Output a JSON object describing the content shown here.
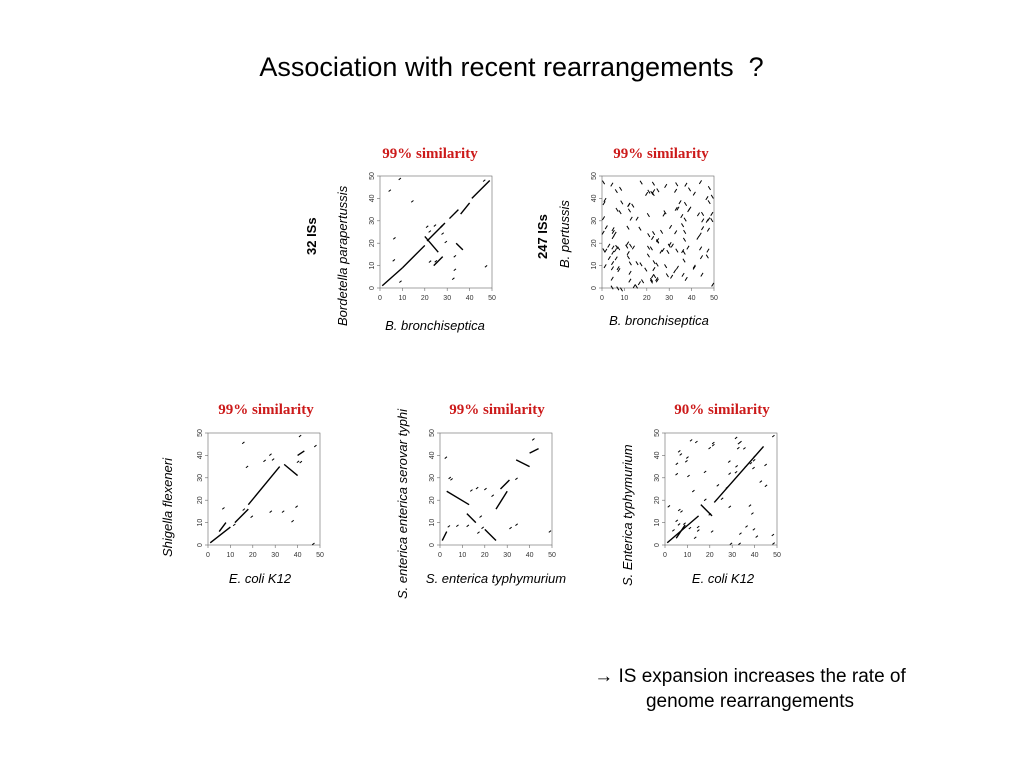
{
  "title": "Association with recent rearrangements  ?",
  "axis_ticks": [
    "0",
    "10",
    "20",
    "30",
    "40",
    "50"
  ],
  "panels": [
    {
      "similarity": "99% similarity",
      "xlabel": "B. bronchiseptica",
      "ylabel": "Bordetella parapertussis",
      "is_count": "32 ISs"
    },
    {
      "similarity": "99% similarity",
      "xlabel": "B. bronchiseptica",
      "ylabel": "B. pertussis",
      "is_count": "247 ISs"
    },
    {
      "similarity": "99% similarity",
      "xlabel": "E. coli K12",
      "ylabel": "Shigella flexeneri"
    },
    {
      "similarity": "99% similarity",
      "xlabel": "S. enterica typhymurium",
      "ylabel": "S. enterica enterica serovar typhi"
    },
    {
      "similarity": "90% similarity",
      "xlabel": "E. coli K12",
      "ylabel": "S. Enterica typhymurium"
    }
  ],
  "conclusion": {
    "arrow": "→",
    "line1": "IS expansion increases the rate of",
    "line2": "genome rearrangements"
  }
}
